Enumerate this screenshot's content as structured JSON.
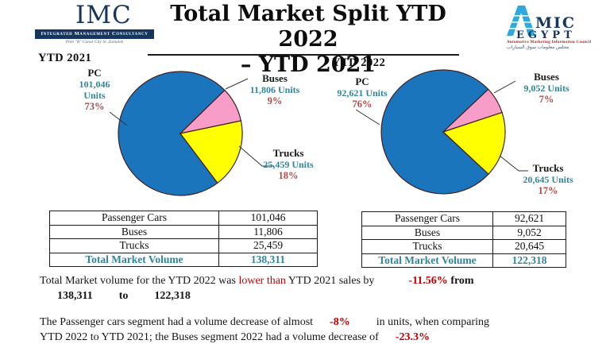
{
  "header": {
    "imc_logo": {
      "acronym": "IMC",
      "bar_text": "Integrated Management Consultancy",
      "tagline": "Plan \"B\" Canal City St. Zamalek"
    },
    "title_line1": "Total Market Split YTD 2022",
    "title_line2": "– YTD 2021",
    "amic_logo": {
      "mic": "MIC",
      "egypt": "EGYPT",
      "council_line": "Automotive Marketing Information Council",
      "arabic_line": "مجلس معلومات سوق السيارات"
    }
  },
  "chart_data": [
    {
      "type": "pie",
      "title": "YTD 2021",
      "start_angle_cw_from_top": 143,
      "legend_position": "callout-labels",
      "slices": [
        {
          "label": "PC",
          "units": 101046,
          "units_text": "101,046 Units",
          "pct": 73,
          "pct_text": "73%",
          "color": "#1B75BC"
        },
        {
          "label": "Buses",
          "units": 11806,
          "units_text": "11,806 Units",
          "pct": 9,
          "pct_text": "9%",
          "color": "#F79DC7"
        },
        {
          "label": "Trucks",
          "units": 25459,
          "units_text": "25,459 Units",
          "pct": 18,
          "pct_text": "18%",
          "color": "#FFFF00"
        }
      ]
    },
    {
      "type": "pie",
      "title": "YTD 2022",
      "start_angle_cw_from_top": 133,
      "legend_position": "callout-labels",
      "slices": [
        {
          "label": "PC",
          "units": 92621,
          "units_text": "92,621 Units",
          "pct": 76,
          "pct_text": "76%",
          "color": "#1B75BC"
        },
        {
          "label": "Buses",
          "units": 9052,
          "units_text": "9,052 Units",
          "pct": 7,
          "pct_text": "7%",
          "color": "#F79DC7"
        },
        {
          "label": "Trucks",
          "units": 20645,
          "units_text": "20,645 Units",
          "pct": 17,
          "pct_text": "17%",
          "color": "#FFFF00"
        }
      ]
    }
  ],
  "tables": [
    {
      "rows": [
        [
          "Passenger Cars",
          "101,046"
        ],
        [
          "Buses",
          "11,806"
        ],
        [
          "Trucks",
          "25,459"
        ]
      ],
      "total_label": "Total Market Volume",
      "total_value": "138,311"
    },
    {
      "rows": [
        [
          "Passenger Cars",
          "92,621"
        ],
        [
          "Buses",
          "9,052"
        ],
        [
          "Trucks",
          "20,645"
        ]
      ],
      "total_label": "Total Market Volume",
      "total_value": "122,318"
    }
  ],
  "summary": {
    "line1_a": "Total Market volume for the YTD 2022 was",
    "line1_red": "lower than",
    "line1_b": "YTD 2021 sales by",
    "line1_pct": "-11.56%",
    "line1_c": "from",
    "line2_from": "138,311",
    "line2_to_word": "to",
    "line2_to_val": "122,318",
    "p2_a": "The Passenger cars segment had a volume decrease of almost",
    "p2_pct1": "-8%",
    "p2_b": "in units, when comparing",
    "p2_c": "YTD 2022 to YTD 2021; the Buses segment 2022  had a volume decrease of",
    "p2_pct2": "-23.3%"
  },
  "colors": {
    "teal": "#31849B",
    "label_pct_maroon": "#AE4A47",
    "summary_red": "#C00000",
    "pie_stroke": "#402020",
    "navy": "#17365D",
    "amic_blue": "#2FA8DC"
  }
}
